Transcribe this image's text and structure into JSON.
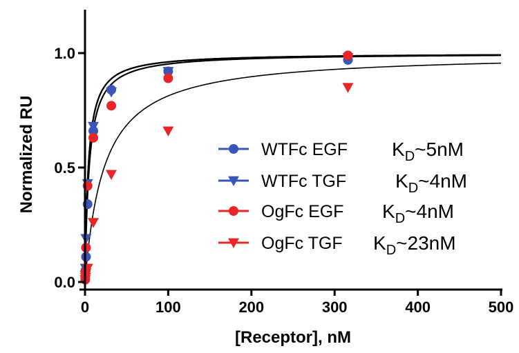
{
  "chart_data": {
    "type": "scatter",
    "title": "",
    "xlabel": "[Receptor], nM",
    "ylabel": "Normalized RU",
    "xlim": [
      0,
      500
    ],
    "ylim": [
      0,
      1.2
    ],
    "x_ticks": [
      "0",
      "100",
      "200",
      "300",
      "400",
      "500"
    ],
    "y_ticks": [
      "0.0",
      "0.5",
      "1.0"
    ],
    "legend_position": "center-right",
    "series": [
      {
        "name": "WTFc EGF",
        "marker": "circle",
        "color": "#3a55b5",
        "kd_prefix": "K",
        "kd_sub": "D",
        "kd_suffix": "~5nM",
        "points": [
          [
            0.3,
            0.02
          ],
          [
            0.6,
            0.05
          ],
          [
            1.2,
            0.11
          ],
          [
            3.1,
            0.34
          ],
          [
            10,
            0.66
          ],
          [
            31.6,
            0.84
          ],
          [
            100,
            0.92
          ],
          [
            316,
            0.97
          ]
        ]
      },
      {
        "name": "WTFc TGF",
        "marker": "triangle-down",
        "color": "#3a55b5",
        "kd_prefix": "K",
        "kd_sub": "D",
        "kd_suffix": "~4nM",
        "points": [
          [
            0.3,
            0.03
          ],
          [
            0.6,
            0.06
          ],
          [
            1.2,
            0.19
          ],
          [
            3.1,
            0.43
          ],
          [
            10,
            0.68
          ],
          [
            31.6,
            0.83
          ],
          [
            100,
            0.92
          ],
          [
            316,
            0.98
          ]
        ]
      },
      {
        "name": "OgFc EGF",
        "marker": "circle",
        "color": "#e8262a",
        "kd_prefix": "K",
        "kd_sub": "D",
        "kd_suffix": "~4nM",
        "points": [
          [
            0.3,
            0.01
          ],
          [
            0.6,
            0.04
          ],
          [
            1.2,
            0.15
          ],
          [
            3.1,
            0.42
          ],
          [
            10,
            0.63
          ],
          [
            31.6,
            0.77
          ],
          [
            100,
            0.89
          ],
          [
            316,
            0.99
          ]
        ]
      },
      {
        "name": "OgFc TGF",
        "marker": "triangle-down",
        "color": "#e8262a",
        "kd_prefix": "K",
        "kd_sub": "D",
        "kd_suffix": "~23nM",
        "points": [
          [
            0.3,
            0.01
          ],
          [
            0.6,
            0.02
          ],
          [
            1.2,
            0.04
          ],
          [
            3.1,
            0.06
          ],
          [
            10,
            0.26
          ],
          [
            31.6,
            0.47
          ],
          [
            100,
            0.66
          ],
          [
            316,
            0.85
          ]
        ]
      }
    ],
    "fit_curves": [
      {
        "bmax": 1.0,
        "kd": 5,
        "color": "#000000"
      },
      {
        "bmax": 1.0,
        "kd": 4,
        "color": "#000000"
      },
      {
        "bmax": 1.0,
        "kd": 4,
        "color": "#000000"
      },
      {
        "bmax": 1.0,
        "kd": 23,
        "color": "#000000"
      }
    ]
  }
}
